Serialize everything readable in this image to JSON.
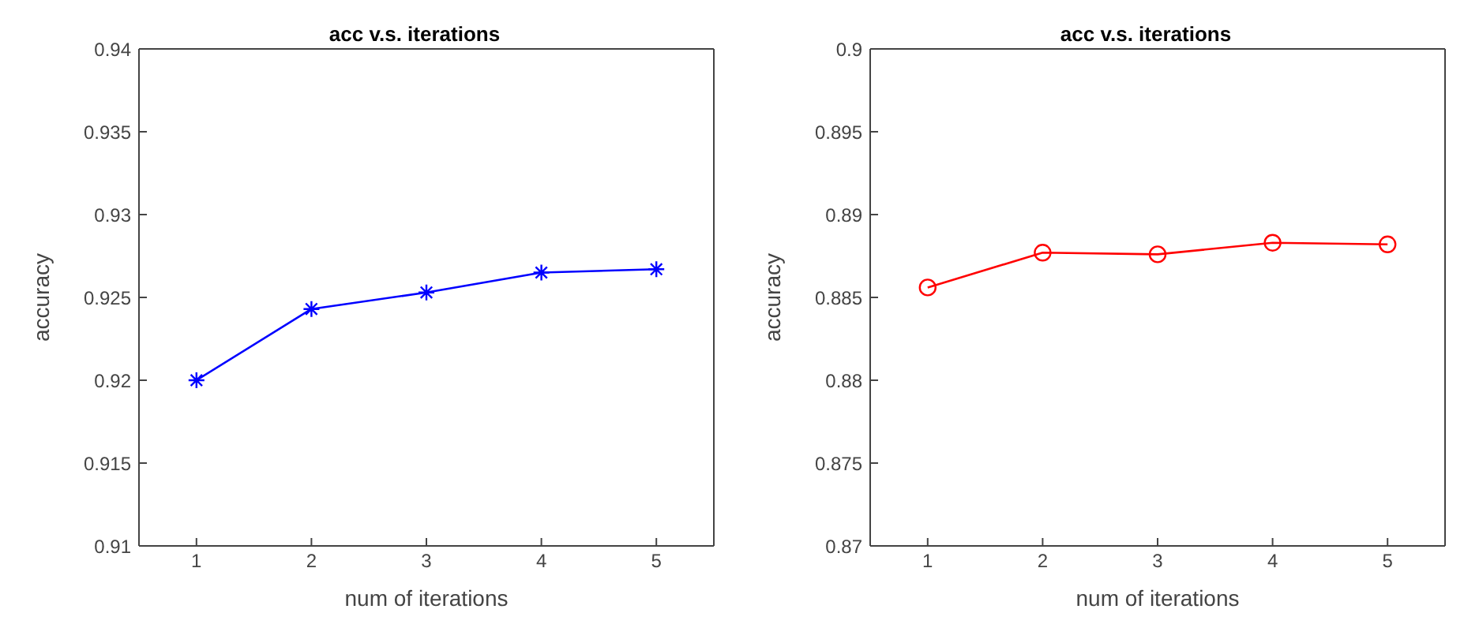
{
  "chart_data": [
    {
      "type": "line",
      "title": "acc v.s. iterations",
      "xlabel": "num of iterations",
      "ylabel": "accuracy",
      "x": [
        1,
        2,
        3,
        4,
        5
      ],
      "xlim": [
        0.5,
        5.5
      ],
      "xticks": [
        1,
        2,
        3,
        4,
        5
      ],
      "ylim": [
        0.91,
        0.94
      ],
      "yticks": [
        0.91,
        0.915,
        0.92,
        0.925,
        0.93,
        0.935,
        0.94
      ],
      "marker": "cross",
      "grid": false,
      "series": [
        {
          "color": "#0000ff",
          "values": [
            0.92,
            0.9243,
            0.9253,
            0.9265,
            0.9267
          ]
        }
      ]
    },
    {
      "type": "line",
      "title": "acc v.s. iterations",
      "xlabel": "num of iterations",
      "ylabel": "accuracy",
      "x": [
        1,
        2,
        3,
        4,
        5
      ],
      "xlim": [
        0.5,
        5.5
      ],
      "xticks": [
        1,
        2,
        3,
        4,
        5
      ],
      "ylim": [
        0.87,
        0.9
      ],
      "yticks": [
        0.87,
        0.875,
        0.88,
        0.885,
        0.89,
        0.895,
        0.9
      ],
      "marker": "circle",
      "grid": false,
      "series": [
        {
          "color": "#ff0000",
          "values": [
            0.8856,
            0.8877,
            0.8876,
            0.8883,
            0.8882
          ]
        }
      ]
    }
  ]
}
